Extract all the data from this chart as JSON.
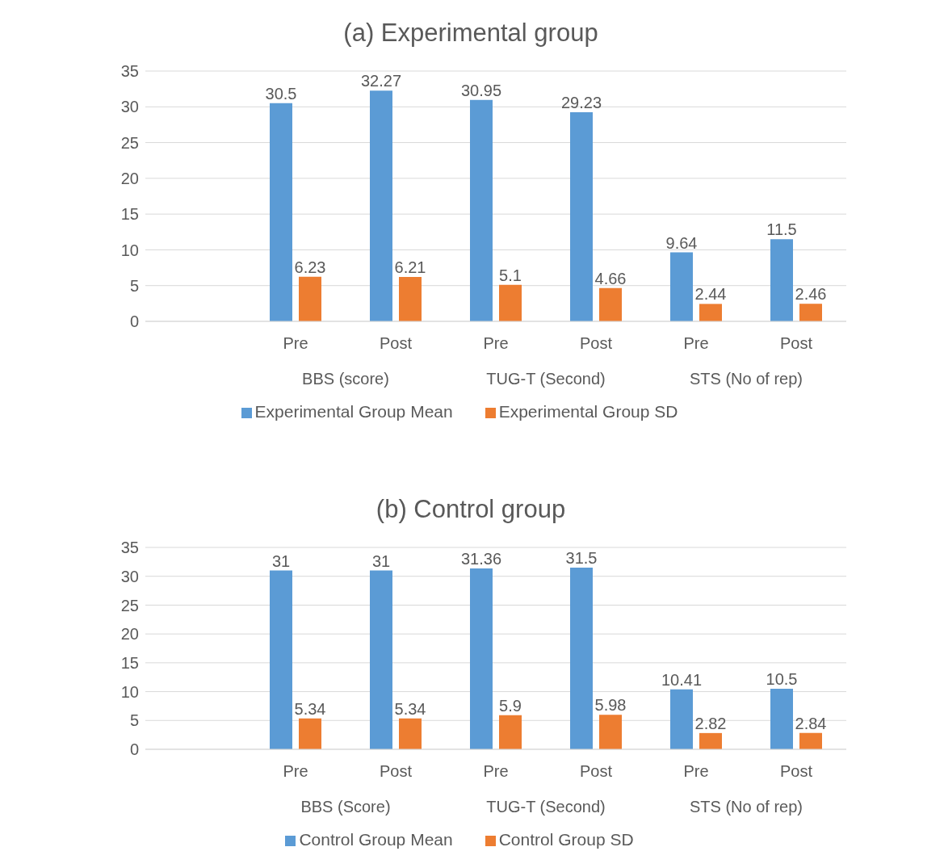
{
  "chart_data": [
    {
      "type": "bar",
      "title": "(a) Experimental group",
      "categories": [
        null,
        "Pre",
        "Post",
        "Pre",
        "Post",
        "Pre",
        "Post"
      ],
      "series": [
        {
          "name": "Experimental Group Mean",
          "color": "#5b9bd5",
          "values": [
            null,
            30.5,
            32.27,
            30.95,
            29.23,
            9.64,
            11.5
          ]
        },
        {
          "name": "Experimental Group SD",
          "color": "#ed7d31",
          "values": [
            null,
            6.23,
            6.21,
            5.1,
            4.66,
            2.44,
            2.46
          ]
        }
      ],
      "annotations": [
        "BBS (score)",
        "TUG-T (Second)",
        "STS (No of rep)"
      ],
      "ylim": [
        0,
        35
      ],
      "yticks": [
        0,
        5,
        10,
        15,
        20,
        25,
        30,
        35
      ],
      "grid": "y",
      "legend": "bottom",
      "data_labels": true
    },
    {
      "type": "bar",
      "title": "(b) Control group",
      "categories": [
        null,
        "Pre",
        "Post",
        "Pre",
        "Post",
        "Pre",
        "Post"
      ],
      "series": [
        {
          "name": "Control Group Mean",
          "color": "#5b9bd5",
          "values": [
            null,
            31,
            31,
            31.36,
            31.5,
            10.41,
            10.5
          ]
        },
        {
          "name": "Control Group SD",
          "color": "#ed7d31",
          "values": [
            null,
            5.34,
            5.34,
            5.9,
            5.98,
            2.82,
            2.84
          ]
        }
      ],
      "annotations": [
        "BBS (Score)",
        "TUG-T (Second)",
        "STS (No of rep)"
      ],
      "ylim": [
        0,
        35
      ],
      "yticks": [
        0,
        5,
        10,
        15,
        20,
        25,
        30,
        35
      ],
      "grid": "y",
      "legend": "bottom",
      "data_labels": true
    }
  ]
}
